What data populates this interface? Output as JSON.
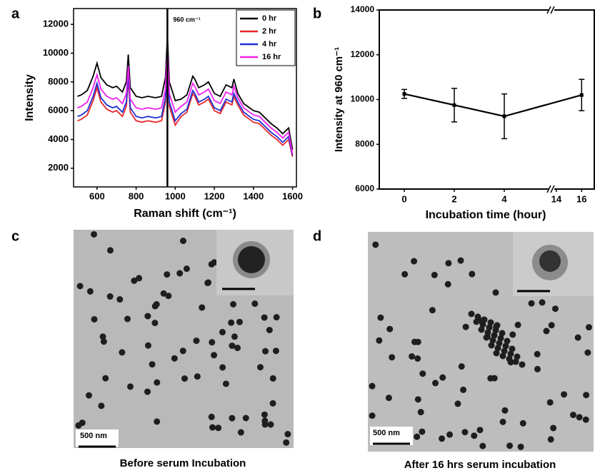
{
  "panel_labels": [
    "a",
    "b",
    "c",
    "d"
  ],
  "chart_data": [
    {
      "type": "line",
      "x_label": "Raman shift (cm⁻¹)",
      "y_label": "Intensity",
      "x": [
        500,
        520,
        550,
        580,
        600,
        620,
        650,
        680,
        700,
        730,
        750,
        760,
        770,
        800,
        830,
        860,
        900,
        930,
        950,
        960,
        970,
        1000,
        1030,
        1060,
        1090,
        1100,
        1120,
        1150,
        1170,
        1200,
        1230,
        1260,
        1290,
        1300,
        1320,
        1350,
        1380,
        1400,
        1430,
        1460,
        1490,
        1520,
        1550,
        1580,
        1600
      ],
      "series": [
        {
          "name": "0 hr",
          "color": "#000000",
          "values": [
            7000,
            7100,
            7400,
            8400,
            9300,
            8300,
            7800,
            7600,
            7700,
            7300,
            8000,
            9900,
            7600,
            7000,
            6900,
            7000,
            6900,
            7000,
            8300,
            11200,
            8000,
            6700,
            6800,
            7100,
            8400,
            8200,
            7600,
            7800,
            8000,
            7200,
            7000,
            7800,
            7600,
            8200,
            7200,
            6500,
            6200,
            6000,
            5900,
            5500,
            5100,
            4800,
            4400,
            4800,
            3300
          ]
        },
        {
          "name": "2 hr",
          "color": "#e8262b",
          "values": [
            5300,
            5400,
            5700,
            6700,
            7600,
            6600,
            6100,
            5900,
            6000,
            5600,
            6300,
            8200,
            5900,
            5300,
            5200,
            5300,
            5200,
            5300,
            6600,
            9500,
            6300,
            5000,
            5600,
            5900,
            7200,
            7000,
            6400,
            6600,
            6800,
            6000,
            5800,
            6600,
            6400,
            7000,
            6400,
            5700,
            5400,
            5200,
            5100,
            4700,
            4300,
            4000,
            3600,
            4000,
            2800
          ]
        },
        {
          "name": "4 hr",
          "color": "#1f2fd6",
          "values": [
            5600,
            5700,
            6000,
            7000,
            7900,
            6900,
            6400,
            6200,
            6300,
            5900,
            6600,
            8500,
            6200,
            5600,
            5500,
            5600,
            5500,
            5600,
            6900,
            9800,
            6600,
            5300,
            5800,
            6100,
            7400,
            7200,
            6600,
            6800,
            7000,
            6200,
            6000,
            6800,
            6600,
            7200,
            6600,
            5900,
            5600,
            5400,
            5300,
            4900,
            4500,
            4200,
            3800,
            4200,
            2900
          ]
        },
        {
          "name": "16 hr",
          "color": "#f020f0",
          "values": [
            6200,
            6300,
            6600,
            7600,
            8500,
            7500,
            7000,
            6800,
            6900,
            6500,
            7200,
            9100,
            6800,
            6200,
            6100,
            6200,
            6100,
            6200,
            7500,
            10400,
            7200,
            5900,
            6300,
            6600,
            7900,
            7700,
            7100,
            7300,
            7500,
            6700,
            6500,
            7300,
            7100,
            7700,
            6900,
            6200,
            5900,
            5700,
            5600,
            5200,
            4800,
            4500,
            4100,
            4500,
            3000
          ]
        }
      ],
      "xlim": [
        480,
        1620
      ],
      "ylim": [
        700,
        13100
      ],
      "xticks": [
        600,
        800,
        1000,
        1200,
        1400,
        1600
      ],
      "yticks": [
        2000,
        4000,
        6000,
        8000,
        10000,
        12000
      ],
      "annotation": {
        "value": 960,
        "label": "960 cm⁻¹"
      },
      "legend": "upper right"
    },
    {
      "type": "errorbar",
      "x_label": "Incubation time (hour)",
      "y_label": "Intensity at 960 cm⁻¹",
      "x": [
        0,
        2,
        4,
        16
      ],
      "values": [
        10250,
        9750,
        9250,
        10200
      ],
      "errors": [
        200,
        750,
        1000,
        700
      ],
      "color": "#000000",
      "xlim": [
        -1,
        17
      ],
      "x_break": [
        5,
        13.5
      ],
      "ylim": [
        6000,
        14000
      ],
      "xticks": [
        0,
        2,
        4,
        14,
        16
      ],
      "yticks": [
        6000,
        8000,
        10000,
        12000,
        14000
      ]
    }
  ],
  "images": [
    {
      "scale_bar": "500 nm",
      "caption": "Before serum Incubation"
    },
    {
      "scale_bar": "500 nm",
      "caption": "After  16 hrs serum incubation"
    }
  ]
}
